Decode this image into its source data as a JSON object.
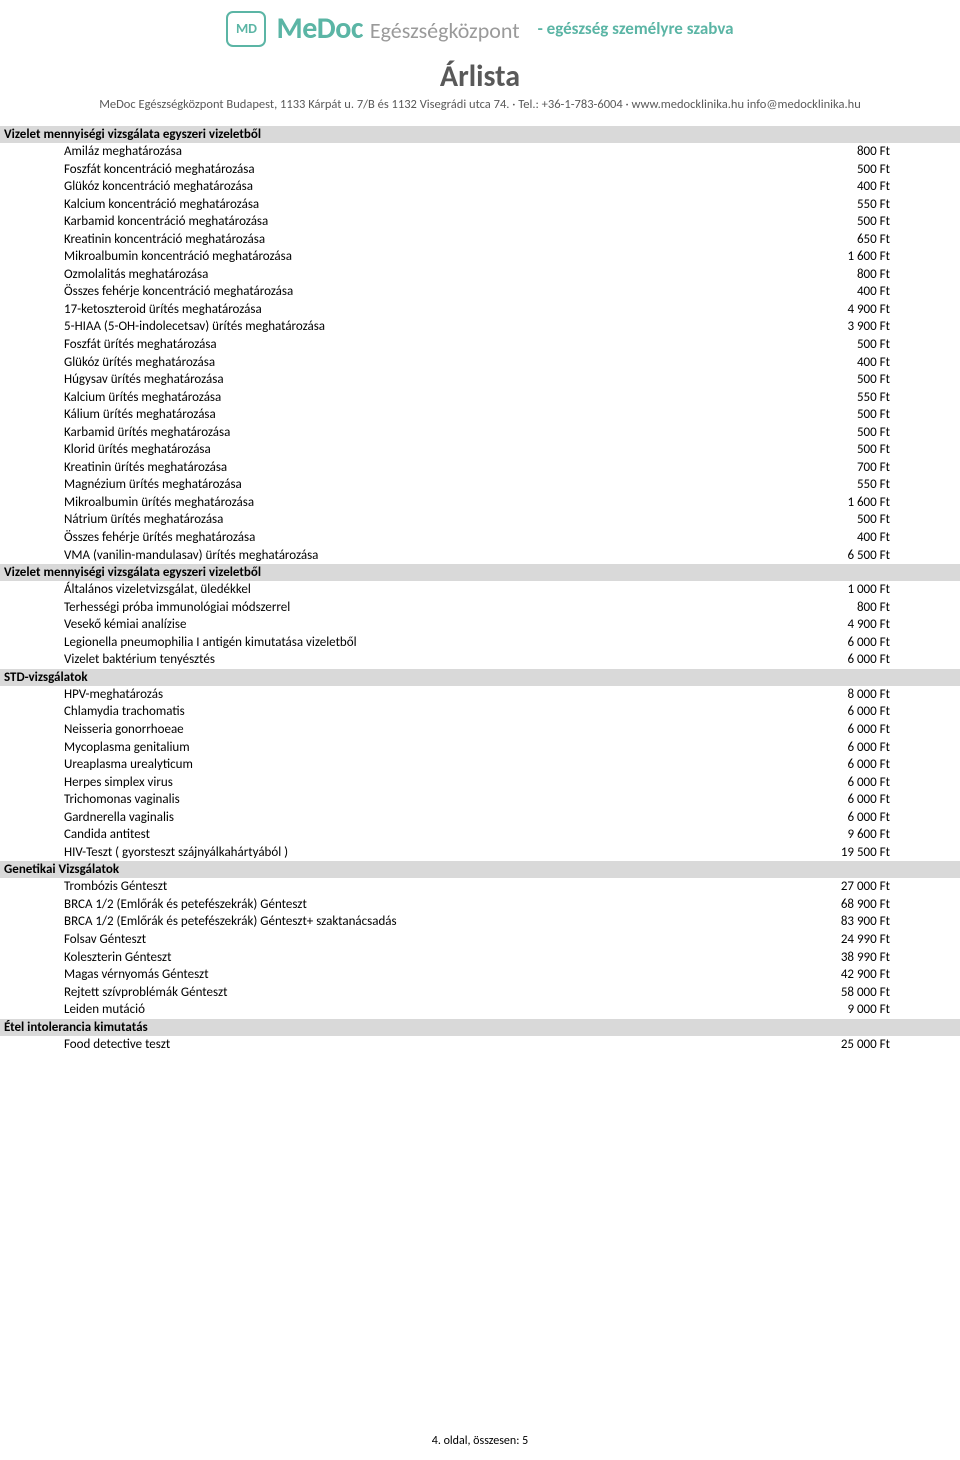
{
  "header": {
    "logo_text": "MD",
    "brand": "MeDoc",
    "brand_sub": "Egészségközpont",
    "slogan": "- egészség személyre szabva"
  },
  "title": "Árlista",
  "subtitle": "MeDoc Egészségközpont Budapest, 1133 Kárpát u. 7/B és 1132 Visegrádi utca 74. · Tel.: +36-1-783-6004 · www.medocklinika.hu info@medocklinika.hu",
  "sections": [
    {
      "title": "Vizelet mennyiségi vizsgálata egyszeri vizeletből",
      "items": [
        {
          "label": "Amiláz meghatározása",
          "price": "800 Ft"
        },
        {
          "label": "Foszfát koncentráció meghatározása",
          "price": "500 Ft"
        },
        {
          "label": "Glükóz koncentráció meghatározása",
          "price": "400 Ft"
        },
        {
          "label": "Kalcium koncentráció meghatározása",
          "price": "550 Ft"
        },
        {
          "label": "Karbamid  koncentráció meghatározása",
          "price": "500 Ft"
        },
        {
          "label": "Kreatinin  koncentráció meghatározása",
          "price": "650 Ft"
        },
        {
          "label": "Mikroalbumin koncentráció meghatározása",
          "price": "1 600 Ft"
        },
        {
          "label": "Ozmolalitás meghatározása",
          "price": "800 Ft"
        },
        {
          "label": "Összes fehérje koncentráció meghatározása",
          "price": "400 Ft"
        },
        {
          "label": "17-ketoszteroid ürítés meghatározása",
          "price": "4 900 Ft"
        },
        {
          "label": "5-HIAA (5-OH-indolecetsav) ürítés meghatározása",
          "price": "3 900 Ft"
        },
        {
          "label": "Foszfát ürítés meghatározása",
          "price": "500 Ft"
        },
        {
          "label": "Glükóz ürítés meghatározása",
          "price": "400 Ft"
        },
        {
          "label": "Húgysav ürítés meghatározása",
          "price": "500 Ft"
        },
        {
          "label": "Kalcium ürítés meghatározása",
          "price": "550 Ft"
        },
        {
          "label": "Kálium ürítés meghatározása",
          "price": "500 Ft"
        },
        {
          "label": "Karbamid ürítés meghatározása",
          "price": "500 Ft"
        },
        {
          "label": "Klorid ürítés meghatározása",
          "price": "500 Ft"
        },
        {
          "label": "Kreatinin ürítés meghatározása",
          "price": "700 Ft"
        },
        {
          "label": "Magnézium ürítés meghatározása",
          "price": "550 Ft"
        },
        {
          "label": "Mikroalbumin ürítés meghatározása",
          "price": "1 600 Ft"
        },
        {
          "label": "Nátrium ürítés meghatározása",
          "price": "500 Ft"
        },
        {
          "label": "Összes fehérje ürítés meghatározása",
          "price": "400 Ft"
        },
        {
          "label": "VMA (vanilin-mandulasav) ürítés meghatározása",
          "price": "6 500 Ft"
        }
      ]
    },
    {
      "title": "Vizelet mennyiségi vizsgálata egyszeri vizeletből",
      "items": [
        {
          "label": "Általános vizeletvizsgálat, üledékkel",
          "price": "1 000 Ft"
        },
        {
          "label": "Terhességi próba immunológiai módszerrel",
          "price": "800 Ft"
        },
        {
          "label": "Vesekő kémiai analízise",
          "price": "4 900 Ft"
        },
        {
          "label": "Legionella pneumophilia I antigén kimutatása vizeletből",
          "price": "6 000 Ft"
        },
        {
          "label": "Vizelet baktérium tenyésztés",
          "price": "6 000 Ft"
        }
      ]
    },
    {
      "title": "STD-vizsgálatok",
      "items": [
        {
          "label": "HPV-meghatározás",
          "price": "8 000 Ft"
        },
        {
          "label": "Chlamydia trachomatis",
          "price": "6 000 Ft"
        },
        {
          "label": "Neisseria gonorrhoeae",
          "price": "6 000 Ft"
        },
        {
          "label": "Mycoplasma genitalium",
          "price": "6 000 Ft"
        },
        {
          "label": "Ureaplasma urealyticum",
          "price": "6 000 Ft"
        },
        {
          "label": "Herpes simplex virus",
          "price": "6 000 Ft"
        },
        {
          "label": "Trichomonas vaginalis",
          "price": "6 000 Ft"
        },
        {
          "label": "Gardnerella vaginalis",
          "price": "6 000 Ft"
        },
        {
          "label": "Candida antitest",
          "price": "9 600 Ft"
        },
        {
          "label": "HIV-Teszt ( gyorsteszt szájnyálkahártyából )",
          "price": "19 500 Ft"
        }
      ]
    },
    {
      "title": "Genetikai Vizsgálatok",
      "items": [
        {
          "label": "Trombózis Génteszt",
          "price": "27 000 Ft"
        },
        {
          "label": "BRCA 1/2 (Emlőrák és petefészekrák) Génteszt",
          "price": "68 900 Ft"
        },
        {
          "label": "BRCA 1/2 (Emlőrák és petefészekrák) Génteszt+ szaktanácsadás",
          "price": "83 900 Ft"
        },
        {
          "label": "Folsav Génteszt",
          "price": "24 990 Ft"
        },
        {
          "label": "Koleszterin Génteszt",
          "price": "38 990 Ft"
        },
        {
          "label": "Magas vérnyomás Génteszt",
          "price": "42 900 Ft"
        },
        {
          "label": "Rejtett szívproblémák Génteszt",
          "price": "58 000 Ft"
        },
        {
          "label": "Leiden mutáció",
          "price": "9 000 Ft"
        }
      ]
    },
    {
      "title": "Étel intolerancia kimutatás",
      "items": [
        {
          "label": "Food detective teszt",
          "price": "25 000 Ft"
        }
      ]
    }
  ],
  "footer": "4. oldal, összesen: 5",
  "colors": {
    "section_bg": "#d9d9d9",
    "brand": "#5bb5a5",
    "gray": "#9a9a9a",
    "title": "#595959"
  }
}
